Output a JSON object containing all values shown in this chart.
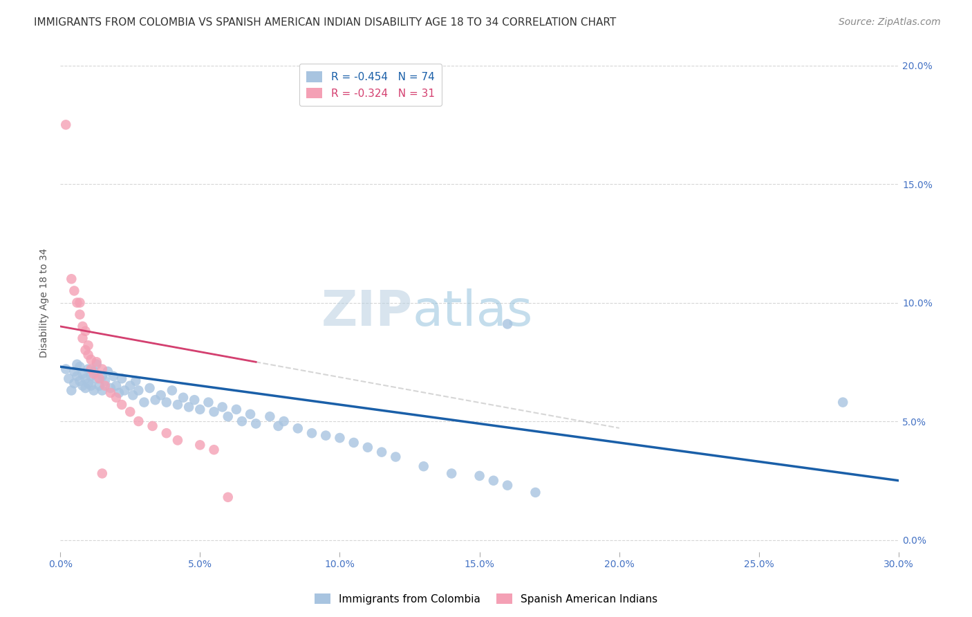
{
  "title": "IMMIGRANTS FROM COLOMBIA VS SPANISH AMERICAN INDIAN DISABILITY AGE 18 TO 34 CORRELATION CHART",
  "source": "Source: ZipAtlas.com",
  "ylabel": "Disability Age 18 to 34",
  "watermark_zip": "ZIP",
  "watermark_atlas": "atlas",
  "xmin": 0.0,
  "xmax": 0.3,
  "ymin": -0.005,
  "ymax": 0.205,
  "yticks": [
    0.0,
    0.05,
    0.1,
    0.15,
    0.2
  ],
  "xticks": [
    0.0,
    0.05,
    0.1,
    0.15,
    0.2,
    0.25,
    0.3
  ],
  "blue_R": -0.454,
  "blue_N": 74,
  "pink_R": -0.324,
  "pink_N": 31,
  "blue_label": "Immigrants from Colombia",
  "pink_label": "Spanish American Indians",
  "blue_color": "#a8c4e0",
  "blue_line_color": "#1a5fa8",
  "pink_color": "#f4a0b5",
  "pink_line_color": "#d44070",
  "blue_scatter_x": [
    0.002,
    0.003,
    0.004,
    0.005,
    0.005,
    0.006,
    0.006,
    0.007,
    0.007,
    0.008,
    0.008,
    0.009,
    0.009,
    0.01,
    0.01,
    0.011,
    0.011,
    0.012,
    0.012,
    0.013,
    0.013,
    0.014,
    0.015,
    0.015,
    0.016,
    0.017,
    0.018,
    0.019,
    0.02,
    0.021,
    0.022,
    0.023,
    0.025,
    0.026,
    0.027,
    0.028,
    0.03,
    0.032,
    0.034,
    0.036,
    0.038,
    0.04,
    0.042,
    0.044,
    0.046,
    0.048,
    0.05,
    0.053,
    0.055,
    0.058,
    0.06,
    0.063,
    0.065,
    0.068,
    0.07,
    0.075,
    0.078,
    0.08,
    0.085,
    0.09,
    0.095,
    0.1,
    0.105,
    0.11,
    0.115,
    0.12,
    0.13,
    0.14,
    0.15,
    0.155,
    0.16,
    0.17,
    0.28,
    0.16
  ],
  "blue_scatter_y": [
    0.072,
    0.068,
    0.063,
    0.071,
    0.066,
    0.069,
    0.074,
    0.067,
    0.073,
    0.065,
    0.07,
    0.068,
    0.064,
    0.072,
    0.066,
    0.069,
    0.065,
    0.071,
    0.063,
    0.068,
    0.074,
    0.065,
    0.069,
    0.063,
    0.067,
    0.071,
    0.064,
    0.069,
    0.065,
    0.062,
    0.068,
    0.063,
    0.065,
    0.061,
    0.067,
    0.063,
    0.058,
    0.064,
    0.059,
    0.061,
    0.058,
    0.063,
    0.057,
    0.06,
    0.056,
    0.059,
    0.055,
    0.058,
    0.054,
    0.056,
    0.052,
    0.055,
    0.05,
    0.053,
    0.049,
    0.052,
    0.048,
    0.05,
    0.047,
    0.045,
    0.044,
    0.043,
    0.041,
    0.039,
    0.037,
    0.035,
    0.031,
    0.028,
    0.027,
    0.025,
    0.023,
    0.02,
    0.058,
    0.091
  ],
  "pink_scatter_x": [
    0.002,
    0.004,
    0.005,
    0.006,
    0.007,
    0.007,
    0.008,
    0.008,
    0.009,
    0.009,
    0.01,
    0.01,
    0.011,
    0.011,
    0.012,
    0.013,
    0.014,
    0.015,
    0.016,
    0.018,
    0.02,
    0.022,
    0.025,
    0.028,
    0.033,
    0.038,
    0.042,
    0.05,
    0.055,
    0.015,
    0.06
  ],
  "pink_scatter_y": [
    0.175,
    0.11,
    0.105,
    0.1,
    0.095,
    0.1,
    0.09,
    0.085,
    0.08,
    0.088,
    0.078,
    0.082,
    0.076,
    0.072,
    0.07,
    0.075,
    0.068,
    0.072,
    0.065,
    0.062,
    0.06,
    0.057,
    0.054,
    0.05,
    0.048,
    0.045,
    0.042,
    0.04,
    0.038,
    0.028,
    0.018
  ],
  "title_fontsize": 11,
  "axis_label_fontsize": 10,
  "tick_fontsize": 10,
  "legend_fontsize": 11,
  "source_fontsize": 10,
  "grid_color": "#cccccc",
  "background_color": "#ffffff",
  "title_color": "#333333",
  "right_axis_color": "#4472c4",
  "bottom_axis_color": "#4472c4"
}
